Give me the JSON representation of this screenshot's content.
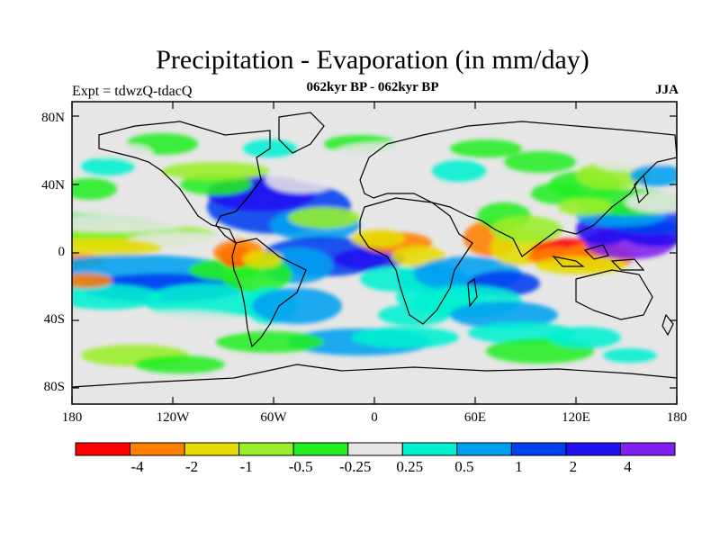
{
  "title": "Precipitation - Evaporation (in mm/day)",
  "subtitle": "062kyr BP - 062kyr BP",
  "experiment": "Expt = tdwzQ-tdacQ",
  "season": "JJA",
  "y_ticks": [
    "80N",
    "40N",
    "0",
    "40S",
    "80S"
  ],
  "x_ticks": [
    "180",
    "120W",
    "60W",
    "0",
    "60E",
    "120E",
    "180"
  ],
  "colorbar": {
    "colors": [
      "#ff0000",
      "#ff8000",
      "#e6dc00",
      "#9aee2a",
      "#22ee22",
      "#e6e6e6",
      "#00f0d2",
      "#00a0f0",
      "#0040f0",
      "#2010f0",
      "#8020f0"
    ],
    "labels": [
      "-4",
      "-2",
      "-1",
      "-0.5",
      "-0.25",
      "0.25",
      "0.5",
      "1",
      "2",
      "4"
    ]
  },
  "map_colors": {
    "land": "#e6e6e6",
    "ocean_background": "#e6e6e6"
  }
}
